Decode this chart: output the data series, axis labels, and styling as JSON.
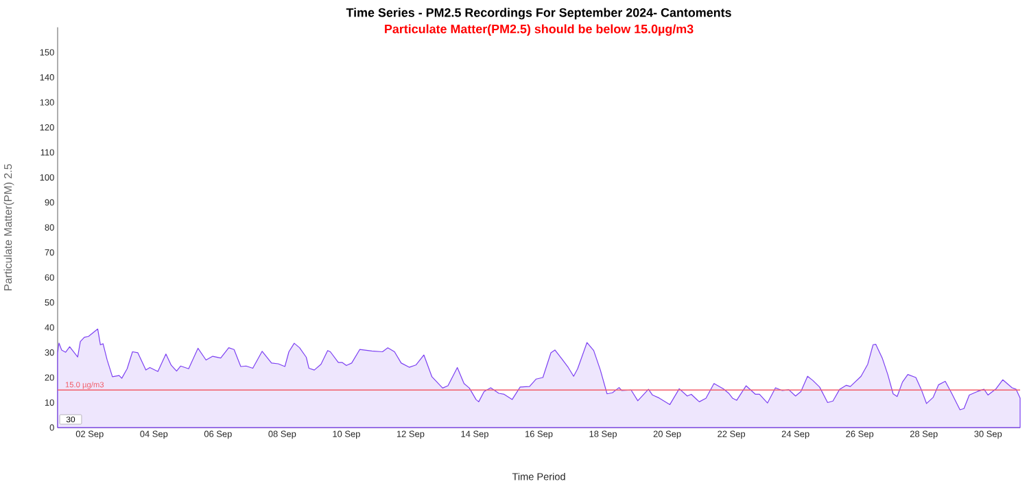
{
  "chart_data": {
    "type": "area",
    "title": "Time Series - PM2.5 Recordings For September 2024- Cantoments",
    "subtitle": "Particulate Matter(PM2.5) should be below 15.0µg/m3",
    "xlabel": "Time Period",
    "ylabel": "Particulate Matter(PM) 2.5",
    "color": "#7b3ff2",
    "x": [
      "2024-09-01T00:00",
      "2024-09-01T01:00",
      "2024-09-01T03:00",
      "2024-09-01T06:00",
      "2024-09-01T09:00",
      "2024-09-01T15:00",
      "2024-09-01T17:00",
      "2024-09-01T20:00",
      "2024-09-01T23:00",
      "2024-09-02T03:00",
      "2024-09-02T06:00",
      "2024-09-02T08:00",
      "2024-09-02T10:00",
      "2024-09-02T13:00",
      "2024-09-02T17:00",
      "2024-09-02T22:00",
      "2024-09-03T00:00",
      "2024-09-03T04:00",
      "2024-09-03T08:00",
      "2024-09-03T12:00",
      "2024-09-03T18:00",
      "2024-09-03T21:00",
      "2024-09-04T03:00",
      "2024-09-04T09:00",
      "2024-09-04T13:00",
      "2024-09-04T17:00",
      "2024-09-04T20:00",
      "2024-09-05T02:00",
      "2024-09-05T09:00",
      "2024-09-05T15:00",
      "2024-09-05T20:00",
      "2024-09-06T02:00",
      "2024-09-06T08:00",
      "2024-09-06T12:00",
      "2024-09-06T17:00",
      "2024-09-06T21:00",
      "2024-09-07T02:00",
      "2024-09-07T09:00",
      "2024-09-07T16:00",
      "2024-09-07T21:00",
      "2024-09-08T02:00",
      "2024-09-08T05:00",
      "2024-09-08T09:00",
      "2024-09-08T13:00",
      "2024-09-08T18:00",
      "2024-09-08T20:00",
      "2024-09-09T00:00",
      "2024-09-09T05:00",
      "2024-09-09T10:00",
      "2024-09-09T12:00",
      "2024-09-09T18:00",
      "2024-09-09T21:00",
      "2024-09-10T00:00",
      "2024-09-10T04:00",
      "2024-09-10T10:00",
      "2024-09-10T19:00",
      "2024-09-11T03:00",
      "2024-09-11T07:00",
      "2024-09-11T12:00",
      "2024-09-11T17:00",
      "2024-09-11T23:00",
      "2024-09-12T04:00",
      "2024-09-12T10:00",
      "2024-09-12T16:00",
      "2024-09-13T00:00",
      "2024-09-13T04:00",
      "2024-09-13T11:00",
      "2024-09-13T16:00",
      "2024-09-13T20:00",
      "2024-09-14T01:00",
      "2024-09-14T03:00",
      "2024-09-14T07:00",
      "2024-09-14T12:00",
      "2024-09-14T18:00",
      "2024-09-14T22:00",
      "2024-09-15T04:00",
      "2024-09-15T10:00",
      "2024-09-15T17:00",
      "2024-09-15T22:00",
      "2024-09-16T03:00",
      "2024-09-16T09:00",
      "2024-09-16T12:00",
      "2024-09-16T17:00",
      "2024-09-16T22:00",
      "2024-09-17T02:00",
      "2024-09-17T05:00",
      "2024-09-17T12:00",
      "2024-09-17T17:00",
      "2024-09-17T22:00",
      "2024-09-18T03:00",
      "2024-09-18T07:00",
      "2024-09-18T12:00",
      "2024-09-18T14:00",
      "2024-09-18T21:00",
      "2024-09-19T02:00",
      "2024-09-19T10:00",
      "2024-09-19T13:00",
      "2024-09-19T18:00",
      "2024-09-20T02:00",
      "2024-09-20T09:00",
      "2024-09-20T15:00",
      "2024-09-20T18:00",
      "2024-09-21T00:00",
      "2024-09-21T05:00",
      "2024-09-21T11:00",
      "2024-09-21T18:00",
      "2024-09-21T22:00",
      "2024-09-22T01:00",
      "2024-09-22T04:00",
      "2024-09-22T11:00",
      "2024-09-22T18:00",
      "2024-09-22T21:00",
      "2024-09-23T03:00",
      "2024-09-23T09:00",
      "2024-09-23T14:00",
      "2024-09-23T19:00",
      "2024-09-24T00:00",
      "2024-09-24T04:00",
      "2024-09-24T09:00",
      "2024-09-24T13:00",
      "2024-09-24T18:00",
      "2024-09-25T00:00",
      "2024-09-25T04:00",
      "2024-09-25T09:00",
      "2024-09-25T14:00",
      "2024-09-25T17:00",
      "2024-09-26T01:00",
      "2024-09-26T06:00",
      "2024-09-26T10:00",
      "2024-09-26T12:00",
      "2024-09-26T17:00",
      "2024-09-26T21:00",
      "2024-09-27T01:00",
      "2024-09-27T04:00",
      "2024-09-27T08:00",
      "2024-09-27T12:00",
      "2024-09-27T18:00",
      "2024-09-27T22:00",
      "2024-09-28T02:00",
      "2024-09-28T07:00",
      "2024-09-28T11:00",
      "2024-09-28T16:00",
      "2024-09-28T21:00",
      "2024-09-29T03:00",
      "2024-09-29T06:00",
      "2024-09-29T10:00",
      "2024-09-29T16:00",
      "2024-09-29T21:00",
      "2024-09-30T00:00",
      "2024-09-30T06:00",
      "2024-09-30T11:00",
      "2024-09-30T18:00",
      "2024-09-30T21:00",
      "2024-10-01T00:00"
    ],
    "values": [
      29.9,
      33.8,
      31.0,
      30.1,
      32.3,
      28.2,
      34.4,
      36.1,
      36.4,
      38.1,
      39.4,
      33.1,
      33.5,
      27.1,
      20.3,
      20.8,
      19.7,
      23.5,
      30.3,
      29.9,
      23.0,
      24.0,
      22.4,
      29.4,
      24.9,
      22.6,
      24.6,
      23.5,
      31.7,
      27.0,
      28.5,
      27.8,
      31.9,
      31.2,
      24.4,
      24.6,
      23.7,
      30.5,
      25.8,
      25.5,
      24.4,
      30.3,
      33.7,
      31.9,
      28.1,
      23.7,
      23.0,
      25.3,
      30.8,
      30.3,
      26.0,
      26.0,
      24.8,
      25.8,
      31.2,
      30.6,
      30.3,
      31.9,
      30.3,
      25.8,
      24.1,
      25.0,
      29.0,
      20.3,
      15.8,
      16.7,
      24.0,
      17.6,
      15.8,
      11.2,
      10.3,
      14.4,
      15.9,
      13.7,
      13.3,
      11.2,
      16.2,
      16.4,
      19.4,
      20.0,
      29.9,
      31.0,
      27.6,
      24.0,
      20.5,
      23.5,
      34.0,
      30.8,
      23.0,
      13.5,
      13.9,
      16.0,
      14.8,
      15.0,
      10.7,
      15.3,
      13.0,
      11.8,
      9.2,
      15.5,
      12.6,
      13.3,
      10.3,
      11.7,
      17.6,
      15.5,
      13.7,
      11.7,
      10.9,
      16.7,
      13.3,
      13.3,
      9.8,
      15.9,
      14.8,
      15.1,
      12.6,
      14.4,
      20.5,
      18.8,
      16.2,
      10.0,
      10.6,
      15.3,
      16.9,
      16.4,
      20.5,
      25.3,
      33.1,
      33.3,
      27.6,
      21.2,
      13.5,
      12.4,
      18.2,
      21.2,
      20.0,
      15.3,
      9.6,
      12.1,
      17.1,
      18.5,
      13.5,
      7.1,
      7.6,
      13.0,
      14.4,
      15.3,
      13.0,
      15.5,
      19.1,
      15.9,
      15.3,
      11.8
    ],
    "xlim": [
      "2024-09-01T00:00",
      "2024-10-01T00:00"
    ],
    "xticks": [
      {
        "value": "2024-09-02",
        "label": "02 Sep"
      },
      {
        "value": "2024-09-04",
        "label": "04 Sep"
      },
      {
        "value": "2024-09-06",
        "label": "06 Sep"
      },
      {
        "value": "2024-09-08",
        "label": "08 Sep"
      },
      {
        "value": "2024-09-10",
        "label": "10 Sep"
      },
      {
        "value": "2024-09-12",
        "label": "12 Sep"
      },
      {
        "value": "2024-09-14",
        "label": "14 Sep"
      },
      {
        "value": "2024-09-16",
        "label": "16 Sep"
      },
      {
        "value": "2024-09-18",
        "label": "18 Sep"
      },
      {
        "value": "2024-09-20",
        "label": "20 Sep"
      },
      {
        "value": "2024-09-22",
        "label": "22 Sep"
      },
      {
        "value": "2024-09-24",
        "label": "24 Sep"
      },
      {
        "value": "2024-09-26",
        "label": "26 Sep"
      },
      {
        "value": "2024-09-28",
        "label": "28 Sep"
      },
      {
        "value": "2024-09-30",
        "label": "30 Sep"
      }
    ],
    "ylim": [
      0,
      160
    ],
    "yticks": [
      0,
      10,
      20,
      30,
      40,
      50,
      60,
      70,
      80,
      90,
      100,
      110,
      120,
      130,
      140,
      150
    ],
    "ref_lines": [
      {
        "axis": "y",
        "value": 15.0,
        "label": "15.0 µg/m3",
        "color": "#f25c68"
      }
    ],
    "annotations": [
      "30"
    ]
  }
}
